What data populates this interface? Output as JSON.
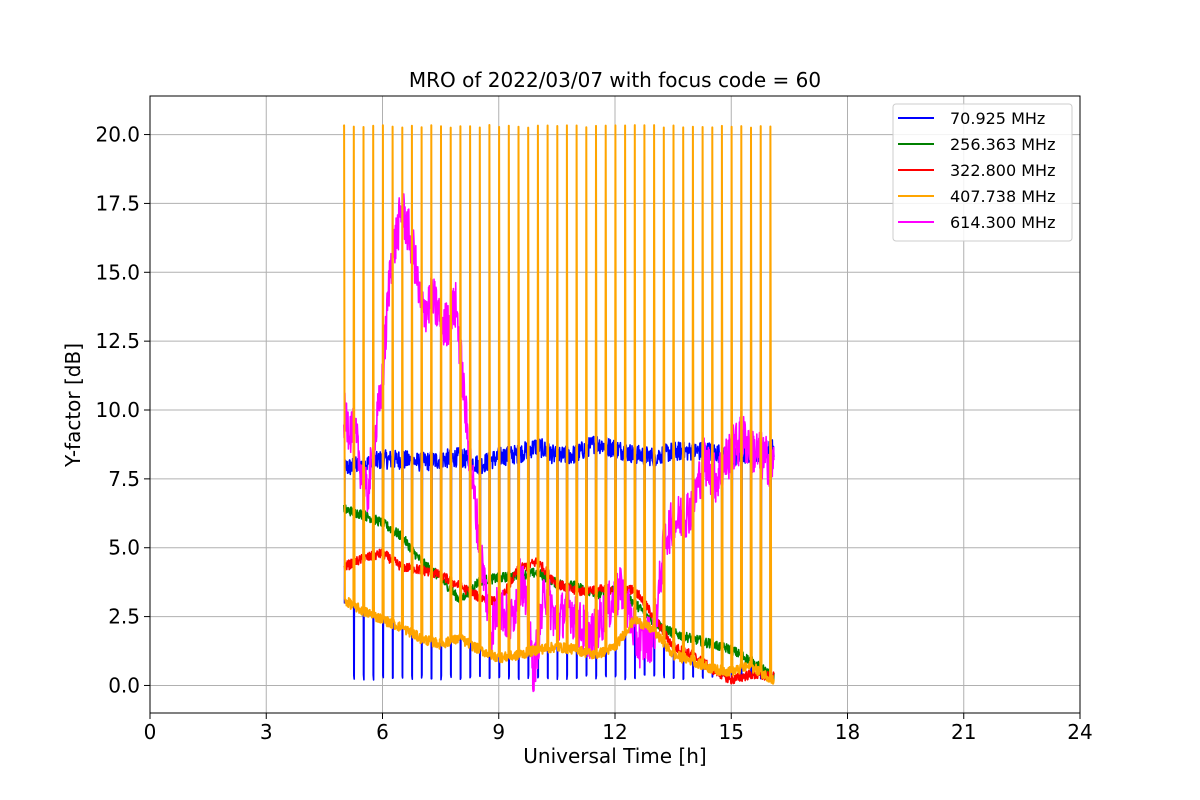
{
  "chart_data": {
    "type": "line",
    "title": "MRO of 2022/03/07 with focus code = 60",
    "xlabel": "Universal Time [h]",
    "ylabel": "Y-factor [dB]",
    "xlim": [
      0,
      24
    ],
    "ylim": [
      -1,
      21.4
    ],
    "xticks": [
      0,
      3,
      6,
      9,
      12,
      15,
      18,
      21,
      24
    ],
    "yticks": [
      0.0,
      2.5,
      5.0,
      7.5,
      10.0,
      12.5,
      15.0,
      17.5,
      20.0
    ],
    "ytick_labels": [
      "0.0",
      "2.5",
      "5.0",
      "7.5",
      "10.0",
      "12.5",
      "15.0",
      "17.5",
      "20.0"
    ],
    "grid": true,
    "legend_position": "top-right",
    "x_start": 5.0,
    "x_end": 16.1,
    "calibration_spike_period_h": 0.25,
    "series": [
      {
        "name": "70.925 MHz",
        "color": "#0000ff",
        "x": [
          5.0,
          5.5,
          6.0,
          6.5,
          7.0,
          7.5,
          8.0,
          8.5,
          9.0,
          9.5,
          10.0,
          10.5,
          11.0,
          11.5,
          12.0,
          12.5,
          13.0,
          13.5,
          14.0,
          14.5,
          15.0,
          15.5,
          16.1
        ],
        "y": [
          7.9,
          8.0,
          8.2,
          8.2,
          8.1,
          8.2,
          8.3,
          8.0,
          8.3,
          8.4,
          8.7,
          8.3,
          8.4,
          8.8,
          8.6,
          8.4,
          8.3,
          8.5,
          8.5,
          8.5,
          8.3,
          8.4,
          8.6
        ],
        "spike_low": 0.2
      },
      {
        "name": "256.363 MHz",
        "color": "#008000",
        "x": [
          5.0,
          5.5,
          6.0,
          6.5,
          7.0,
          7.5,
          8.0,
          8.5,
          9.0,
          9.5,
          10.0,
          10.5,
          11.0,
          11.5,
          12.0,
          12.5,
          13.0,
          13.5,
          14.0,
          14.5,
          15.0,
          15.5,
          16.1
        ],
        "y": [
          6.4,
          6.2,
          5.9,
          5.4,
          4.5,
          3.9,
          3.1,
          3.8,
          3.9,
          4.0,
          4.1,
          3.7,
          3.6,
          3.3,
          3.5,
          3.0,
          2.3,
          1.9,
          1.7,
          1.5,
          1.3,
          0.9,
          0.3
        ]
      },
      {
        "name": "322.800 MHz",
        "color": "#ff0000",
        "x": [
          5.0,
          5.5,
          6.0,
          6.5,
          7.0,
          7.5,
          8.0,
          8.5,
          9.0,
          9.5,
          10.0,
          10.5,
          11.0,
          11.5,
          12.0,
          12.5,
          13.0,
          13.5,
          14.0,
          14.5,
          15.0,
          15.5,
          16.1
        ],
        "y": [
          4.3,
          4.6,
          4.8,
          4.3,
          4.2,
          4.0,
          3.6,
          3.2,
          3.0,
          4.2,
          4.5,
          3.7,
          3.4,
          3.5,
          3.4,
          3.5,
          2.5,
          1.4,
          1.1,
          0.6,
          0.2,
          0.4,
          0.3
        ]
      },
      {
        "name": "407.738 MHz",
        "color": "#ffa500",
        "x": [
          5.0,
          5.5,
          6.0,
          6.5,
          7.0,
          7.5,
          8.0,
          8.5,
          9.0,
          9.5,
          10.0,
          10.5,
          11.0,
          11.5,
          12.0,
          12.5,
          13.0,
          13.5,
          14.0,
          14.5,
          15.0,
          15.5,
          16.1
        ],
        "y": [
          3.1,
          2.7,
          2.4,
          2.1,
          1.7,
          1.5,
          1.7,
          1.3,
          1.0,
          1.1,
          1.3,
          1.4,
          1.3,
          1.1,
          1.4,
          2.4,
          2.0,
          1.1,
          0.9,
          0.6,
          0.5,
          0.7,
          0.2
        ],
        "spike_high": 20.3,
        "spike_mid": 10.2
      },
      {
        "name": "614.300 MHz",
        "color": "#ff00ff",
        "x": [
          5.0,
          5.3,
          5.6,
          6.0,
          6.2,
          6.5,
          6.8,
          7.0,
          7.3,
          7.6,
          7.9,
          8.2,
          8.5,
          8.8,
          9.0,
          9.3,
          9.6,
          9.9,
          10.2,
          10.5,
          10.8,
          11.0,
          11.4,
          11.8,
          12.2,
          12.6,
          13.0,
          13.3,
          13.6,
          14.0,
          14.3,
          14.6,
          15.0,
          15.3,
          15.6,
          16.1
        ],
        "y": [
          9.8,
          9.0,
          6.8,
          11.0,
          15.2,
          17.3,
          15.8,
          13.5,
          14.0,
          13.0,
          13.8,
          9.0,
          5.2,
          2.0,
          3.0,
          2.2,
          4.0,
          0.5,
          3.5,
          2.2,
          3.0,
          2.3,
          1.8,
          2.8,
          3.5,
          1.5,
          1.8,
          5.5,
          6.0,
          6.5,
          8.2,
          7.5,
          8.5,
          9.0,
          8.5,
          8.0
        ]
      }
    ]
  }
}
